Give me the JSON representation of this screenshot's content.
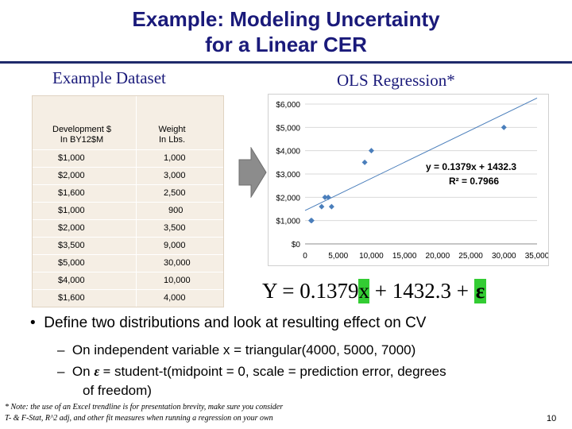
{
  "slide": {
    "title_line1": "Example: Modeling Uncertainty",
    "title_line2": "for a Linear CER",
    "dataset_label": "Example Dataset",
    "ols_label": "OLS Regression*",
    "page_number": "10"
  },
  "table": {
    "headers": [
      "Development $\nIn BY12$M",
      "Weight\nIn Lbs."
    ],
    "rows": [
      [
        "$1,000",
        "1,000"
      ],
      [
        "$2,000",
        "3,000"
      ],
      [
        "$1,600",
        "2,500"
      ],
      [
        "$1,000",
        "900"
      ],
      [
        "$2,000",
        "3,500"
      ],
      [
        "$3,500",
        "9,000"
      ],
      [
        "$5,000",
        "30,000"
      ],
      [
        "$4,000",
        "10,000"
      ],
      [
        "$1,600",
        "4,000"
      ]
    ]
  },
  "chart_data": {
    "type": "scatter",
    "title": "",
    "xlabel": "",
    "ylabel": "",
    "xlim": [
      0,
      35000
    ],
    "ylim": [
      0,
      6000
    ],
    "x_ticks": [
      "0",
      "5,000",
      "10,000",
      "15,000",
      "20,000",
      "25,000",
      "30,000",
      "35,000"
    ],
    "y_ticks": [
      "$0",
      "$1,000",
      "$2,000",
      "$3,000",
      "$4,000",
      "$5,000",
      "$6,000"
    ],
    "grid": "horizontal",
    "points": [
      {
        "x": 1000,
        "y": 1000
      },
      {
        "x": 3000,
        "y": 2000
      },
      {
        "x": 2500,
        "y": 1600
      },
      {
        "x": 900,
        "y": 1000
      },
      {
        "x": 3500,
        "y": 2000
      },
      {
        "x": 9000,
        "y": 3500
      },
      {
        "x": 30000,
        "y": 5000
      },
      {
        "x": 10000,
        "y": 4000
      },
      {
        "x": 4000,
        "y": 1600
      }
    ],
    "trendline": {
      "slope": 0.1379,
      "intercept": 1432.3
    },
    "annotations": [
      "y = 0.1379x + 1432.3",
      "R² = 0.7966"
    ],
    "marker_color": "#4a7ebb",
    "trend_color": "#4a7ebb"
  },
  "equation": {
    "prefix": "Y = 0.1379",
    "x": "x",
    "middle": " + 1432.3 + ",
    "epsilon": "ε"
  },
  "bullets": {
    "main": "Define two distributions and look at resulting effect on CV",
    "sub1": "On independent variable x = triangular(4000, 5000, 7000)",
    "sub2_prefix": "On ",
    "sub2_epsilon": "ε =",
    "sub2_rest": " student-t(midpoint = 0, scale = prediction error, degrees",
    "sub2_cont": "of freedom)"
  },
  "footnote": {
    "line1": "* Note: the use of an Excel trendline is for presentation brevity, make sure you consider",
    "line2": "T- & F-Stat, R^2 adj, and other fit measures when running a regression on your own"
  },
  "colors": {
    "title": "#1a1a7a",
    "table_bg": "#f5eee4",
    "highlight": "#33cc33",
    "arrow": "#8c8c8c"
  }
}
